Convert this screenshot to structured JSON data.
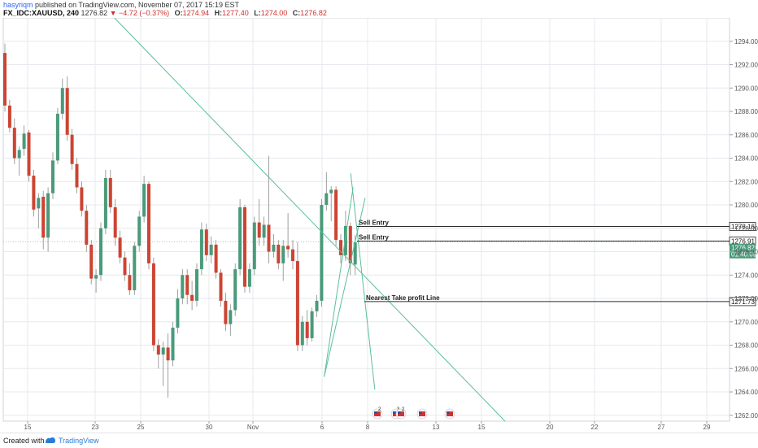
{
  "header": {
    "author": "hasyriqm",
    "published": "published on TradingView.com, November 07, 2017 15:19 EST",
    "symbol": "FX_IDC:XAUUSD, 240",
    "last": "1276.82",
    "arrow": "▼",
    "change": "−4.72 (−0.37%)",
    "open_label": "O:",
    "open": "1274.94",
    "high_label": "H:",
    "high": "1277.40",
    "low_label": "L:",
    "low": "1274.00",
    "close_label": "C:",
    "close": "1276.82"
  },
  "footer": {
    "created_with": "Created with",
    "brand": "TradingView"
  },
  "colors": {
    "up": "#4a9a7a",
    "down": "#cc4433",
    "trendline": "#5bbf9b",
    "hline": "#2b2b2b",
    "axis": "#9aa0aa",
    "grid": "#e6e9ee"
  },
  "chart_data": {
    "type": "candlestick",
    "symbol": "FX_IDC:XAUUSD",
    "interval": "240",
    "ylim": [
      1261.5,
      1296
    ],
    "y_ticks": [
      "1262.00",
      "1264.00",
      "1266.00",
      "1268.00",
      "1270.00",
      "1272.00",
      "1274.00",
      "1276.00",
      "1278.00",
      "1280.00",
      "1282.00",
      "1284.00",
      "1286.00",
      "1288.00",
      "1290.00",
      "1292.00",
      "1294.00"
    ],
    "x_ticks": [
      "15",
      "23",
      "25",
      "30",
      "Nov",
      "6",
      "8",
      "13",
      "15",
      "20",
      "22",
      "27",
      "29"
    ],
    "grid": true,
    "candles": [
      {
        "o": 1293.0,
        "h": 1293.8,
        "l": 1288.0,
        "c": 1288.5
      },
      {
        "o": 1288.5,
        "h": 1289.0,
        "l": 1286.2,
        "c": 1286.6
      },
      {
        "o": 1286.6,
        "h": 1287.4,
        "l": 1283.5,
        "c": 1284.0
      },
      {
        "o": 1284.0,
        "h": 1285.0,
        "l": 1282.5,
        "c": 1284.7
      },
      {
        "o": 1284.8,
        "h": 1286.8,
        "l": 1284.2,
        "c": 1286.1
      },
      {
        "o": 1286.2,
        "h": 1286.4,
        "l": 1282.0,
        "c": 1282.5
      },
      {
        "o": 1282.5,
        "h": 1283.0,
        "l": 1279.0,
        "c": 1279.6
      },
      {
        "o": 1279.7,
        "h": 1281.0,
        "l": 1278.0,
        "c": 1280.6
      },
      {
        "o": 1280.7,
        "h": 1281.2,
        "l": 1276.2,
        "c": 1277.2
      },
      {
        "o": 1277.2,
        "h": 1281.5,
        "l": 1276.0,
        "c": 1281.0
      },
      {
        "o": 1281.0,
        "h": 1284.5,
        "l": 1280.5,
        "c": 1283.8
      },
      {
        "o": 1283.8,
        "h": 1288.3,
        "l": 1283.5,
        "c": 1287.8
      },
      {
        "o": 1287.8,
        "h": 1290.8,
        "l": 1287.3,
        "c": 1290.0
      },
      {
        "o": 1290.0,
        "h": 1291.0,
        "l": 1285.5,
        "c": 1286.0
      },
      {
        "o": 1286.0,
        "h": 1286.5,
        "l": 1283.0,
        "c": 1283.5
      },
      {
        "o": 1283.5,
        "h": 1284.0,
        "l": 1281.0,
        "c": 1281.5
      },
      {
        "o": 1281.5,
        "h": 1282.0,
        "l": 1279.0,
        "c": 1279.5
      },
      {
        "o": 1279.5,
        "h": 1280.0,
        "l": 1276.0,
        "c": 1276.6
      },
      {
        "o": 1276.6,
        "h": 1277.0,
        "l": 1273.2,
        "c": 1273.7
      },
      {
        "o": 1273.7,
        "h": 1274.5,
        "l": 1272.5,
        "c": 1274.0
      },
      {
        "o": 1274.0,
        "h": 1278.5,
        "l": 1273.5,
        "c": 1278.0
      },
      {
        "o": 1278.0,
        "h": 1283.0,
        "l": 1277.5,
        "c": 1282.3
      },
      {
        "o": 1282.3,
        "h": 1283.0,
        "l": 1279.3,
        "c": 1279.8
      },
      {
        "o": 1279.8,
        "h": 1280.5,
        "l": 1276.5,
        "c": 1277.2
      },
      {
        "o": 1277.2,
        "h": 1277.8,
        "l": 1275.0,
        "c": 1275.5
      },
      {
        "o": 1275.5,
        "h": 1276.0,
        "l": 1273.5,
        "c": 1274.0
      },
      {
        "o": 1274.0,
        "h": 1275.0,
        "l": 1272.3,
        "c": 1272.7
      },
      {
        "o": 1272.7,
        "h": 1276.8,
        "l": 1272.3,
        "c": 1276.5
      },
      {
        "o": 1276.5,
        "h": 1279.5,
        "l": 1276.0,
        "c": 1279.0
      },
      {
        "o": 1279.0,
        "h": 1282.5,
        "l": 1278.5,
        "c": 1281.8
      },
      {
        "o": 1281.8,
        "h": 1282.0,
        "l": 1274.5,
        "c": 1275.0
      },
      {
        "o": 1275.0,
        "h": 1275.5,
        "l": 1267.5,
        "c": 1268.0
      },
      {
        "o": 1268.0,
        "h": 1268.5,
        "l": 1266.0,
        "c": 1267.2
      },
      {
        "o": 1267.2,
        "h": 1268.3,
        "l": 1264.5,
        "c": 1267.8
      },
      {
        "o": 1267.8,
        "h": 1269.0,
        "l": 1263.5,
        "c": 1266.7
      },
      {
        "o": 1266.7,
        "h": 1270.0,
        "l": 1266.2,
        "c": 1269.5
      },
      {
        "o": 1269.5,
        "h": 1272.8,
        "l": 1269.0,
        "c": 1272.0
      },
      {
        "o": 1272.0,
        "h": 1274.5,
        "l": 1271.5,
        "c": 1274.0
      },
      {
        "o": 1274.0,
        "h": 1274.5,
        "l": 1271.5,
        "c": 1272.3
      },
      {
        "o": 1272.3,
        "h": 1273.5,
        "l": 1271.0,
        "c": 1271.8
      },
      {
        "o": 1271.8,
        "h": 1275.0,
        "l": 1271.3,
        "c": 1274.5
      },
      {
        "o": 1274.5,
        "h": 1278.5,
        "l": 1274.0,
        "c": 1277.9
      },
      {
        "o": 1277.9,
        "h": 1278.4,
        "l": 1275.2,
        "c": 1275.7
      },
      {
        "o": 1275.7,
        "h": 1277.3,
        "l": 1275.0,
        "c": 1276.6
      },
      {
        "o": 1276.6,
        "h": 1277.0,
        "l": 1273.7,
        "c": 1274.2
      },
      {
        "o": 1274.2,
        "h": 1274.5,
        "l": 1271.3,
        "c": 1271.8
      },
      {
        "o": 1271.8,
        "h": 1272.5,
        "l": 1269.2,
        "c": 1269.8
      },
      {
        "o": 1269.8,
        "h": 1271.5,
        "l": 1268.8,
        "c": 1271.0
      },
      {
        "o": 1271.0,
        "h": 1275.0,
        "l": 1270.5,
        "c": 1274.5
      },
      {
        "o": 1274.5,
        "h": 1280.5,
        "l": 1274.0,
        "c": 1279.8
      },
      {
        "o": 1279.8,
        "h": 1280.0,
        "l": 1272.5,
        "c": 1273.0
      },
      {
        "o": 1273.0,
        "h": 1275.0,
        "l": 1272.5,
        "c": 1274.5
      },
      {
        "o": 1274.5,
        "h": 1279.0,
        "l": 1274.0,
        "c": 1278.5
      },
      {
        "o": 1278.5,
        "h": 1280.5,
        "l": 1276.5,
        "c": 1277.2
      },
      {
        "o": 1277.2,
        "h": 1279.0,
        "l": 1276.5,
        "c": 1278.3
      },
      {
        "o": 1278.3,
        "h": 1284.2,
        "l": 1275.0,
        "c": 1276.0
      },
      {
        "o": 1276.0,
        "h": 1277.5,
        "l": 1275.5,
        "c": 1276.6
      },
      {
        "o": 1276.6,
        "h": 1277.0,
        "l": 1274.5,
        "c": 1275.0
      },
      {
        "o": 1275.0,
        "h": 1277.0,
        "l": 1273.5,
        "c": 1276.5
      },
      {
        "o": 1276.5,
        "h": 1279.3,
        "l": 1275.5,
        "c": 1276.2
      },
      {
        "o": 1276.2,
        "h": 1277.0,
        "l": 1274.5,
        "c": 1275.2
      },
      {
        "o": 1275.2,
        "h": 1276.8,
        "l": 1267.5,
        "c": 1268.0
      },
      {
        "o": 1268.0,
        "h": 1270.5,
        "l": 1267.5,
        "c": 1270.0
      },
      {
        "o": 1270.0,
        "h": 1271.0,
        "l": 1268.0,
        "c": 1268.6
      },
      {
        "o": 1268.6,
        "h": 1271.2,
        "l": 1268.3,
        "c": 1270.9
      },
      {
        "o": 1270.9,
        "h": 1272.3,
        "l": 1270.4,
        "c": 1271.8
      },
      {
        "o": 1271.8,
        "h": 1280.5,
        "l": 1271.3,
        "c": 1280.0
      },
      {
        "o": 1280.0,
        "h": 1282.8,
        "l": 1279.5,
        "c": 1281.0
      },
      {
        "o": 1281.0,
        "h": 1281.6,
        "l": 1278.6,
        "c": 1281.3
      },
      {
        "o": 1281.3,
        "h": 1281.6,
        "l": 1276.5,
        "c": 1277.0
      },
      {
        "o": 1277.0,
        "h": 1277.5,
        "l": 1275.0,
        "c": 1275.7
      },
      {
        "o": 1275.7,
        "h": 1279.5,
        "l": 1275.2,
        "c": 1278.2
      },
      {
        "o": 1278.2,
        "h": 1278.5,
        "l": 1274.0,
        "c": 1275.0
      },
      {
        "o": 1274.9,
        "h": 1277.4,
        "l": 1274.0,
        "c": 1276.8
      }
    ],
    "drawings": [
      {
        "type": "trend_line",
        "p1": [
          18,
          1296
        ],
        "p2": [
          99,
          1261.5
        ]
      },
      {
        "type": "trend_line",
        "p1": [
          67,
          1282.7
        ],
        "p2": [
          72,
          1264.2
        ]
      },
      {
        "type": "trend_line",
        "p1": [
          61.5,
          1265.3
        ],
        "p2": [
          70,
          1280.6
        ]
      },
      {
        "type": "trend_line",
        "p1": [
          61.5,
          1265.3
        ],
        "p2": [
          67.5,
          1281.5
        ]
      }
    ],
    "horizontal_lines": [
      {
        "price": 1278.16,
        "label": "Sell Entry",
        "axis_label": "1278.16"
      },
      {
        "price": 1276.91,
        "label": "Sell Entry",
        "axis_label": "1276.91"
      },
      {
        "price": 1271.73,
        "label": "Nearest Take profit Line",
        "axis_label": "1271.73"
      }
    ],
    "current_price": {
      "value": "1276.82",
      "countdown": "01:40:09"
    },
    "event_markers": [
      "2",
      "3",
      "2",
      "",
      ""
    ]
  }
}
